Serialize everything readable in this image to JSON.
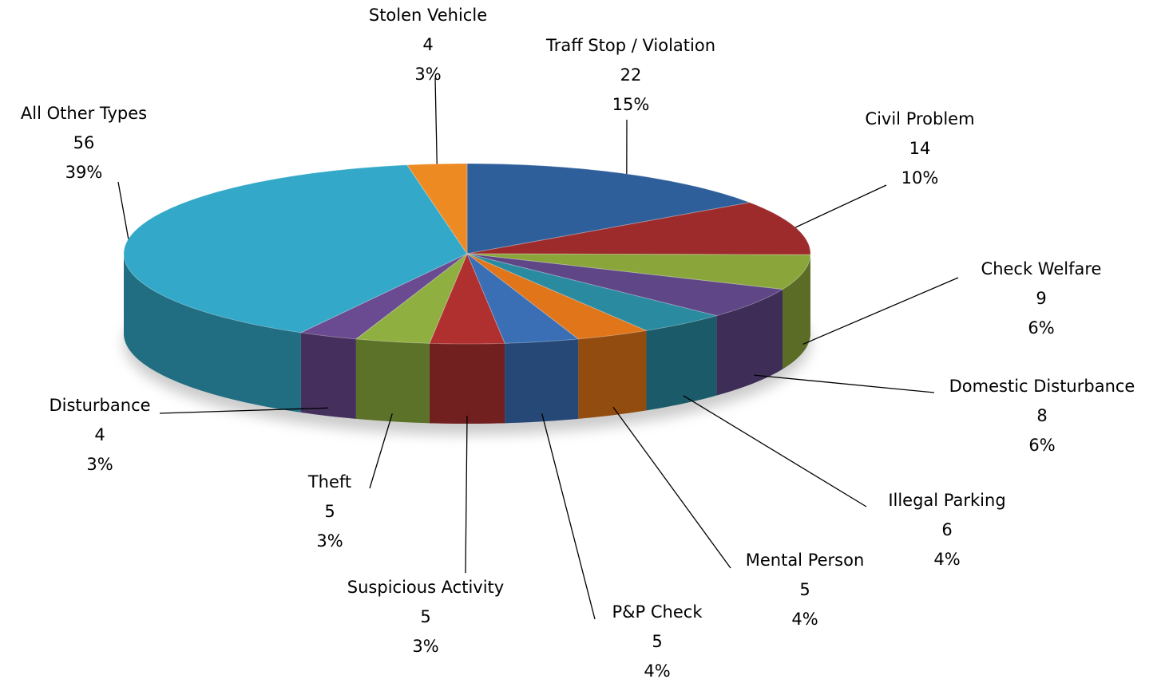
{
  "chart_data": {
    "type": "pie3d",
    "categories": [
      "Traff Stop / Violation",
      "Civil Problem",
      "Check Welfare",
      "Domestic Disturbance",
      "Illegal Parking",
      "Mental Person",
      "P&P Check",
      "Suspicious Activity",
      "Theft",
      "Disturbance",
      "All Other Types",
      "Stolen Vehicle"
    ],
    "values": [
      22,
      14,
      9,
      8,
      6,
      5,
      5,
      5,
      5,
      4,
      56,
      4
    ],
    "percent_labels": [
      "15%",
      "10%",
      "6%",
      "6%",
      "4%",
      "4%",
      "4%",
      "3%",
      "3%",
      "3%",
      "39%",
      "3%"
    ],
    "colors": [
      "#2f5f9a",
      "#9e2b2b",
      "#8aa63a",
      "#5f4686",
      "#2a8aa0",
      "#e0751a",
      "#3a6fb5",
      "#b03030",
      "#8fb040",
      "#6a4a90",
      "#33a8c8",
      "#ee8a22"
    ]
  }
}
